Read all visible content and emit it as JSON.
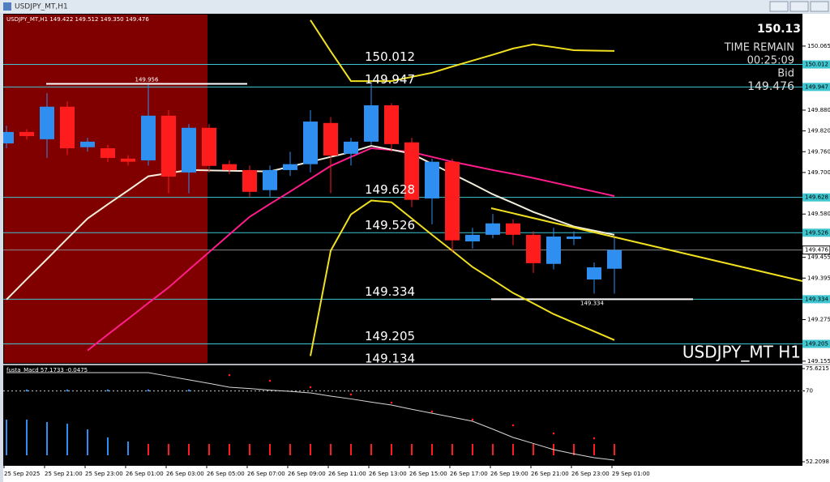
{
  "window": {
    "title": "USDJPY_MT,H1"
  },
  "chart_data": [
    {
      "type": "candlestick",
      "info": "USDJPY_MT,H1 149.422 149.512 149.350 149.476",
      "watermark": "USDJPY_MT H1",
      "price_top": "150.13",
      "time_remain_label": "TIME REMAIN",
      "time_remain": "00:25:09",
      "bid_label": "Bid",
      "bid": 149.476,
      "up_color": "#2f8ff0",
      "down_color": "#ff1c1c",
      "background_band_color": "#800000",
      "categories": [
        "25 Sep 2025",
        null,
        "25 Sep 21:00",
        null,
        "25 Sep 23:00",
        null,
        "26 Sep 01:00",
        null,
        "26 Sep 03:00",
        null,
        "26 Sep 05:00",
        null,
        "26 Sep 07:00",
        null,
        "26 Sep 09:00",
        null,
        "26 Sep 11:00",
        null,
        "26 Sep 13:00",
        null,
        "26 Sep 15:00",
        null,
        "26 Sep 17:00",
        null,
        "26 Sep 19:00",
        null,
        "26 Sep 21:00",
        null,
        "26 Sep 23:00",
        null,
        "29 Sep 01:00"
      ],
      "open": [
        149.784,
        149.817,
        149.796,
        149.89,
        149.773,
        149.77,
        149.74,
        149.735,
        149.864,
        149.7,
        149.829,
        149.724,
        149.707,
        149.649,
        149.707,
        149.724,
        149.843,
        149.754,
        149.789,
        149.894,
        149.787,
        149.625,
        149.731,
        149.501,
        149.52,
        149.553,
        149.52,
        149.436,
        149.508,
        149.391,
        149.422
      ],
      "high": [
        149.835,
        149.825,
        149.929,
        149.905,
        149.8,
        149.78,
        149.75,
        149.953,
        149.88,
        149.84,
        149.84,
        149.735,
        149.72,
        149.72,
        149.76,
        149.88,
        149.86,
        149.8,
        149.96,
        149.9,
        149.8,
        149.74,
        149.74,
        149.54,
        149.58,
        149.565,
        149.53,
        149.54,
        149.53,
        149.44,
        149.512
      ],
      "low": [
        149.77,
        149.795,
        149.742,
        149.75,
        149.76,
        149.73,
        149.72,
        149.72,
        149.64,
        149.64,
        149.7,
        149.695,
        149.63,
        149.63,
        149.69,
        149.7,
        149.64,
        149.72,
        149.78,
        149.76,
        149.6,
        149.55,
        149.47,
        149.48,
        149.51,
        149.49,
        149.41,
        149.42,
        149.49,
        149.35,
        149.35
      ],
      "close": [
        149.817,
        149.805,
        149.89,
        149.77,
        149.789,
        149.742,
        149.731,
        149.864,
        149.688,
        149.829,
        149.719,
        149.707,
        149.644,
        149.707,
        149.724,
        149.847,
        149.749,
        149.789,
        149.894,
        149.782,
        149.621,
        149.731,
        149.504,
        149.52,
        149.553,
        149.52,
        149.438,
        149.515,
        149.515,
        149.426,
        149.476
      ],
      "lines": [
        {
          "color": "#ff1c8c",
          "values": [
            null,
            null,
            null,
            null,
            149.186,
            149.232,
            149.277,
            149.323,
            149.368,
            149.419,
            149.47,
            149.521,
            149.572,
            149.609,
            149.645,
            149.682,
            149.719,
            149.745,
            149.77,
            149.765,
            149.759,
            149.745,
            149.731,
            149.719,
            149.707,
            149.696,
            149.684,
            149.671,
            149.658,
            149.645,
            149.632
          ]
        },
        {
          "color": "#f3eedc",
          "values": [
            149.333,
            149.392,
            149.45,
            149.509,
            149.567,
            149.608,
            149.648,
            149.689,
            149.698,
            149.707,
            149.706,
            149.705,
            149.704,
            149.703,
            149.717,
            149.731,
            149.745,
            149.759,
            149.777,
            149.766,
            149.754,
            149.725,
            149.696,
            149.667,
            149.637,
            149.612,
            149.586,
            149.565,
            149.544,
            149.532,
            149.52
          ]
        },
        {
          "color": "#f0e020",
          "values": [
            null,
            null,
            null,
            null,
            null,
            null,
            null,
            null,
            null,
            null,
            null,
            null,
            null,
            null,
            null,
            150.14,
            150.05,
            149.964,
            149.964,
            149.964,
            149.976,
            149.988,
            150.006,
            150.023,
            150.04,
            150.058,
            150.07,
            150.062,
            150.053,
            150.052,
            150.051
          ]
        },
        {
          "color": "#f0e020",
          "values": [
            null,
            null,
            null,
            null,
            null,
            null,
            null,
            null,
            null,
            null,
            null,
            null,
            null,
            null,
            null,
            149.17,
            149.474,
            149.579,
            149.619,
            149.614,
            149.567,
            149.52,
            149.474,
            149.427,
            149.39,
            149.352,
            149.322,
            149.291,
            149.266,
            149.241,
            149.216
          ]
        }
      ],
      "levels": [
        150.012,
        149.947,
        149.628,
        149.526,
        149.334,
        149.205,
        149.134
      ],
      "level_color": "#3fc6d0",
      "hlines": [
        149.956,
        149.334
      ],
      "ylim": [
        149.15,
        150.156
      ],
      "yticks": [
        150.065,
        {
          "value": 149.88,
          "label": "149.880"
        },
        {
          "value": 149.82,
          "label": "149.820"
        },
        {
          "value": 149.76,
          "label": "149.760"
        },
        {
          "value": 149.7,
          "label": "149.700"
        },
        {
          "value": 149.58,
          "label": "149.580"
        },
        149.455,
        149.395,
        149.275,
        149.155
      ]
    },
    {
      "type": "bar",
      "title": "fusta_Macd 57.1733 -0.0475",
      "ylim": [
        52.2098,
        75.6215
      ],
      "yticks": [
        75.6215,
        70,
        52.2098
      ],
      "series": [
        {
          "color": "#2f8ff0",
          "values": [
            62.79,
            62.79,
            62.19,
            61.78,
            60.35,
            58.32,
            57.3,
            null,
            null,
            null,
            null,
            null,
            null,
            null,
            null,
            null,
            null,
            null,
            null,
            null,
            null,
            null,
            null,
            null,
            null,
            null,
            null,
            null,
            null,
            null,
            null
          ]
        },
        {
          "color": "#ff1c1c",
          "values": [
            null,
            null,
            null,
            null,
            null,
            null,
            null,
            56.69,
            56.69,
            56.69,
            56.69,
            56.69,
            56.69,
            56.69,
            56.69,
            56.69,
            56.69,
            56.69,
            56.69,
            56.69,
            56.69,
            56.69,
            56.69,
            56.69,
            56.69,
            56.69,
            56.69,
            56.69,
            56.69,
            56.69,
            56.69
          ]
        }
      ],
      "dots": [
        {
          "color": "#2f8ff0",
          "values": [
            null,
            70.13,
            null,
            70.13,
            null,
            70.13,
            null,
            70.13,
            null,
            70.13,
            null,
            null,
            null,
            null,
            null,
            null,
            null,
            null,
            null,
            null,
            null,
            null,
            null,
            null,
            null,
            null,
            null,
            null,
            null,
            null,
            null
          ]
        },
        {
          "color": "#ff1c1c",
          "values": [
            null,
            null,
            null,
            null,
            null,
            null,
            null,
            null,
            null,
            null,
            null,
            73.99,
            null,
            72.57,
            null,
            70.94,
            null,
            69.11,
            null,
            67.07,
            null,
            64.83,
            null,
            62.79,
            null,
            61.37,
            null,
            59.33,
            null,
            58.11,
            null
          ]
        }
      ],
      "line": {
        "color": "#d8d8d8",
        "values": [
          74.6,
          74.6,
          74.6,
          74.6,
          74.6,
          74.6,
          74.6,
          74.6,
          73.7,
          72.8,
          71.9,
          70.94,
          70.6,
          70.2,
          69.9,
          69.51,
          68.7,
          68.0,
          67.2,
          66.46,
          65.4,
          64.4,
          63.4,
          62.39,
          60.4,
          58.32,
          56.8,
          55.26,
          54.2,
          53.23,
          52.62
        ]
      }
    }
  ]
}
